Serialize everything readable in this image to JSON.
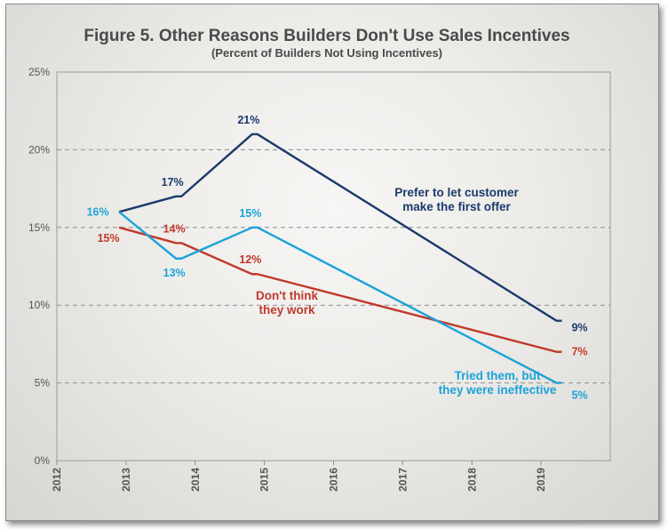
{
  "chart_data": {
    "type": "line",
    "title": "Figure 5.  Other Reasons Builders Don't Use Sales Incentives",
    "subtitle": "(Percent of Builders Not Using Incentives)",
    "xlim": [
      2012,
      2020
    ],
    "ylim": [
      0,
      25
    ],
    "x_ticks": [
      "2012",
      "2013",
      "2014",
      "2015",
      "2016",
      "2017",
      "2018",
      "2019"
    ],
    "y_ticks": [
      "0%",
      "5%",
      "10%",
      "15%",
      "20%",
      "25%"
    ],
    "grid": "horizontal dashed",
    "series": [
      {
        "name": "Prefer to let customer make the first offer",
        "name_lines": [
          "Prefer to let customer",
          "make the first offer"
        ],
        "color": "#1b3a6b",
        "x": [
          2012.9,
          2013.8,
          2014.9,
          2019.3
        ],
        "y": [
          16,
          17,
          21,
          9
        ],
        "labels": [
          "",
          "17%",
          "21%",
          "9%"
        ]
      },
      {
        "name": "Don't think they work",
        "name_lines": [
          "Don't think",
          "they work"
        ],
        "color": "#c0392b",
        "x": [
          2012.9,
          2013.8,
          2014.9,
          2019.3
        ],
        "y": [
          15,
          14,
          12,
          7
        ],
        "labels": [
          "15%",
          "14%",
          "12%",
          "7%"
        ]
      },
      {
        "name": "Tried them, but they were ineffective",
        "name_lines": [
          "Tried them, but",
          "they were ineffective"
        ],
        "color": "#1ba3d9",
        "x": [
          2012.9,
          2013.8,
          2014.9,
          2019.3
        ],
        "y": [
          16,
          13,
          15,
          5
        ],
        "labels": [
          "16%",
          "13%",
          "15%",
          "5%"
        ]
      }
    ]
  }
}
